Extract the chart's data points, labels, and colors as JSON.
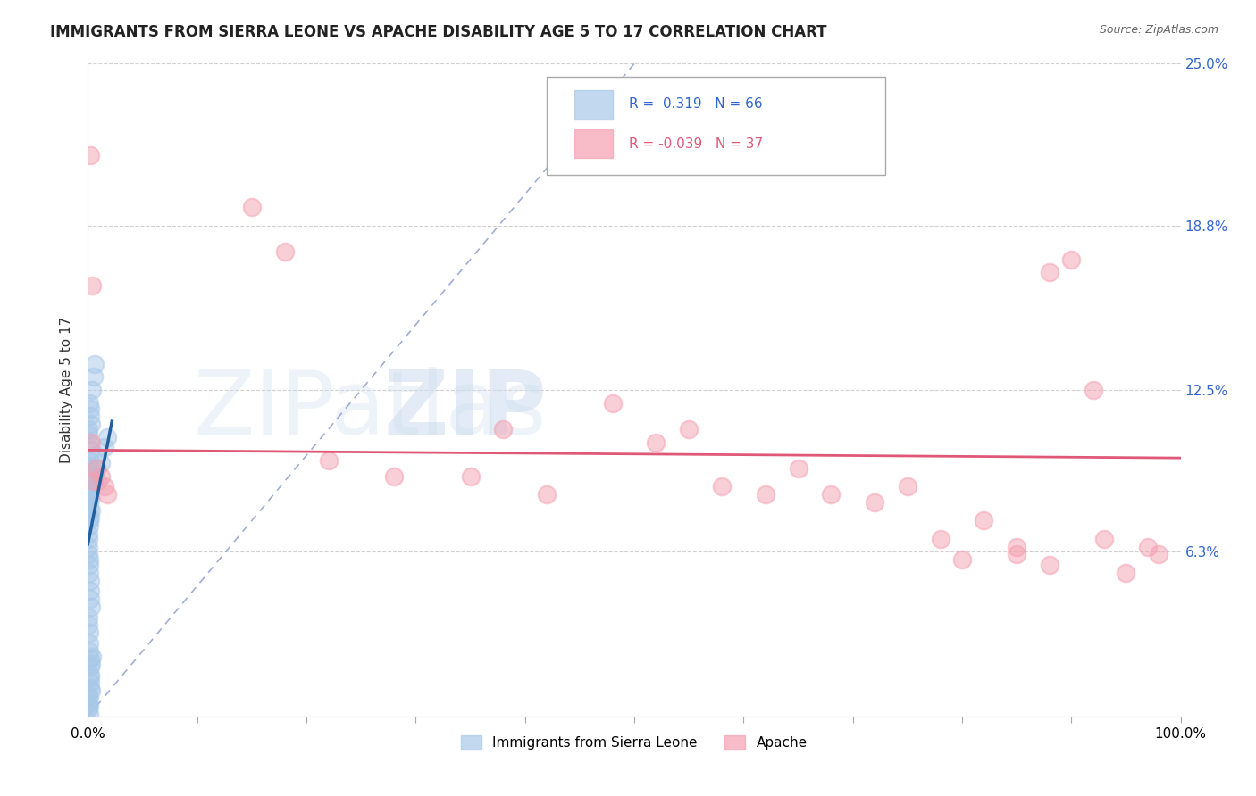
{
  "title": "IMMIGRANTS FROM SIERRA LEONE VS APACHE DISABILITY AGE 5 TO 17 CORRELATION CHART",
  "source": "Source: ZipAtlas.com",
  "ylabel": "Disability Age 5 to 17",
  "xlim": [
    0,
    1.0
  ],
  "ylim": [
    0,
    0.25
  ],
  "ytick_positions": [
    0.0,
    0.063,
    0.125,
    0.188,
    0.25
  ],
  "ytick_labels": [
    "",
    "6.3%",
    "12.5%",
    "18.8%",
    "25.0%"
  ],
  "xtick_positions": [
    0.0,
    0.1,
    0.2,
    0.3,
    0.4,
    0.5,
    0.6,
    0.7,
    0.8,
    0.9,
    1.0
  ],
  "xtick_labels": [
    "0.0%",
    "",
    "",
    "",
    "",
    "",
    "",
    "",
    "",
    "",
    "100.0%"
  ],
  "blue_R": 0.319,
  "blue_N": 66,
  "pink_R": -0.039,
  "pink_N": 37,
  "blue_color": "#a8c8e8",
  "pink_color": "#f4a0b0",
  "blue_line_color": "#2060a0",
  "pink_line_color": "#e05878",
  "diag_color": "#8899cc",
  "legend_label_blue": "Immigrants from Sierra Leone",
  "legend_label_pink": "Apache",
  "blue_scatter_x": [
    0.0005,
    0.0008,
    0.001,
    0.0012,
    0.0015,
    0.0018,
    0.002,
    0.0022,
    0.0025,
    0.003,
    0.0005,
    0.0007,
    0.001,
    0.0015,
    0.002,
    0.0008,
    0.0012,
    0.0018,
    0.003,
    0.0025,
    0.0005,
    0.0006,
    0.0008,
    0.001,
    0.0012,
    0.0015,
    0.002,
    0.0018,
    0.0025,
    0.003,
    0.0005,
    0.0007,
    0.001,
    0.0012,
    0.0015,
    0.0018,
    0.002,
    0.0022,
    0.0025,
    0.003,
    0.0005,
    0.0006,
    0.0008,
    0.001,
    0.0012,
    0.0015,
    0.002,
    0.0025,
    0.003,
    0.0035,
    0.0005,
    0.0007,
    0.001,
    0.0015,
    0.002,
    0.0025,
    0.003,
    0.004,
    0.005,
    0.006,
    0.007,
    0.008,
    0.009,
    0.012,
    0.015,
    0.018
  ],
  "blue_scatter_y": [
    0.092,
    0.088,
    0.086,
    0.084,
    0.098,
    0.102,
    0.091,
    0.094,
    0.089,
    0.095,
    0.078,
    0.082,
    0.075,
    0.08,
    0.085,
    0.07,
    0.073,
    0.076,
    0.079,
    0.083,
    0.065,
    0.068,
    0.062,
    0.06,
    0.058,
    0.055,
    0.052,
    0.048,
    0.045,
    0.042,
    0.038,
    0.035,
    0.032,
    0.028,
    0.025,
    0.022,
    0.019,
    0.016,
    0.013,
    0.01,
    0.008,
    0.005,
    0.003,
    0.001,
    0.004,
    0.007,
    0.011,
    0.015,
    0.02,
    0.023,
    0.11,
    0.108,
    0.105,
    0.12,
    0.118,
    0.115,
    0.112,
    0.125,
    0.13,
    0.135,
    0.1,
    0.095,
    0.09,
    0.097,
    0.103,
    0.107
  ],
  "pink_scatter_x": [
    0.002,
    0.003,
    0.004,
    0.005,
    0.008,
    0.012,
    0.015,
    0.018,
    0.15,
    0.18,
    0.22,
    0.28,
    0.35,
    0.38,
    0.42,
    0.48,
    0.52,
    0.55,
    0.58,
    0.62,
    0.65,
    0.68,
    0.72,
    0.75,
    0.78,
    0.82,
    0.85,
    0.88,
    0.92,
    0.95,
    0.97,
    0.98,
    0.88,
    0.9,
    0.93,
    0.85,
    0.8
  ],
  "pink_scatter_y": [
    0.215,
    0.105,
    0.165,
    0.09,
    0.095,
    0.092,
    0.088,
    0.085,
    0.195,
    0.178,
    0.098,
    0.092,
    0.092,
    0.11,
    0.085,
    0.12,
    0.105,
    0.11,
    0.088,
    0.085,
    0.095,
    0.085,
    0.082,
    0.088,
    0.068,
    0.075,
    0.062,
    0.058,
    0.125,
    0.055,
    0.065,
    0.062,
    0.17,
    0.175,
    0.068,
    0.065,
    0.06
  ],
  "watermark_zip": "ZIP",
  "watermark_atlas": "atlas",
  "grid_color": "#cccccc",
  "background_color": "#ffffff"
}
